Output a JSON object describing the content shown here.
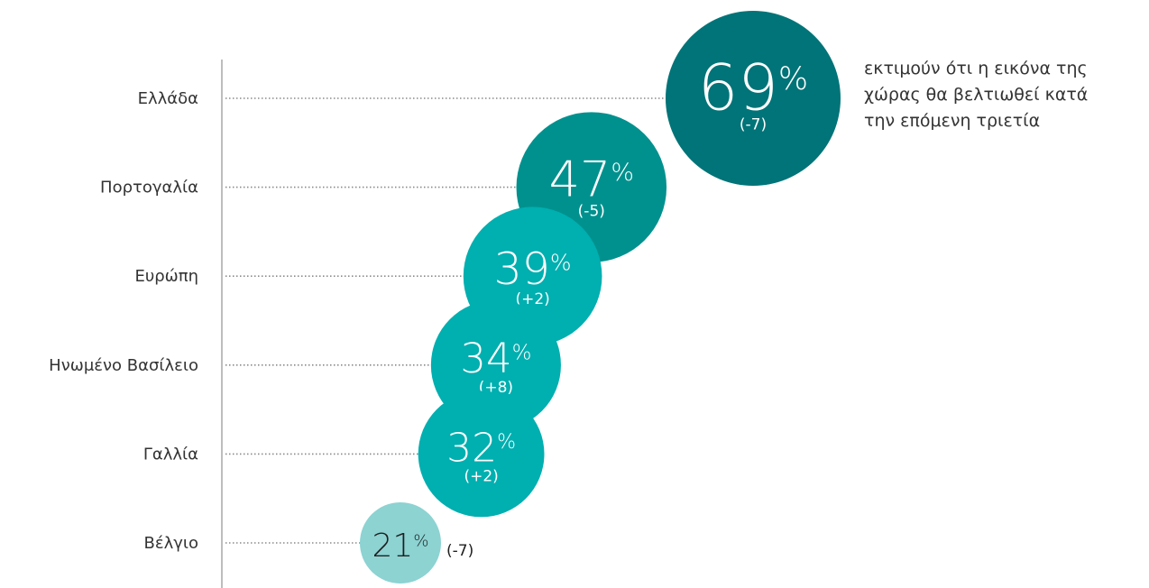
{
  "chart_data": {
    "type": "bubble",
    "categories": [
      "Ελλάδα",
      "Πορτογαλία",
      "Ευρώπη",
      "Ηνωμένο Βασίλειο",
      "Γαλλία",
      "Βέλγιο"
    ],
    "values": [
      69,
      47,
      39,
      34,
      32,
      21
    ],
    "value_labels": [
      "69",
      "47",
      "39",
      "34",
      "32",
      "21"
    ],
    "unit": "%",
    "changes": [
      "(-7)",
      "(-5)",
      "(+2)",
      "(+8)",
      "(+2)",
      "(-7)"
    ],
    "colors": [
      "#007478",
      "#00918e",
      "#00afb0",
      "#00afb0",
      "#00afb0",
      "#8cd3d2"
    ],
    "annotation": [
      "εκτιμούν ότι η εικόνα της",
      "χώρας θα βελτιωθεί κατά",
      "την επόμενη τριετία"
    ],
    "grid": false,
    "legend": "none"
  }
}
